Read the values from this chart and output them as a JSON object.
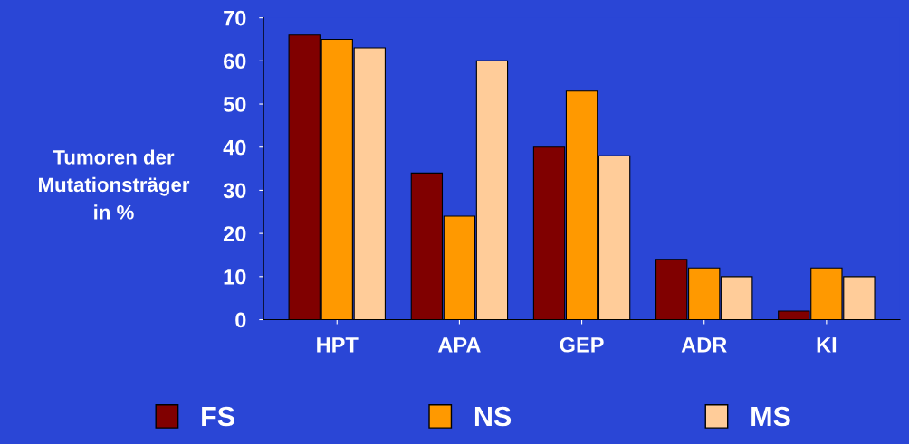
{
  "chart_data": {
    "type": "bar",
    "ylabel": "Tumoren der\nMutationsträger\nin %",
    "categories": [
      "HPT",
      "APA",
      "GEP",
      "ADR",
      "KI"
    ],
    "series": [
      {
        "name": "FS",
        "color": "#800000",
        "values": [
          66,
          34,
          40,
          14,
          2
        ]
      },
      {
        "name": "NS",
        "color": "#ff9900",
        "values": [
          65,
          24,
          53,
          12,
          12
        ]
      },
      {
        "name": "MS",
        "color": "#ffcc99",
        "values": [
          63,
          60,
          38,
          10,
          10
        ]
      }
    ],
    "ylim": [
      0,
      70
    ],
    "yticks": [
      0,
      10,
      20,
      30,
      40,
      50,
      60,
      70
    ],
    "grid": false,
    "legend": "bottom"
  }
}
